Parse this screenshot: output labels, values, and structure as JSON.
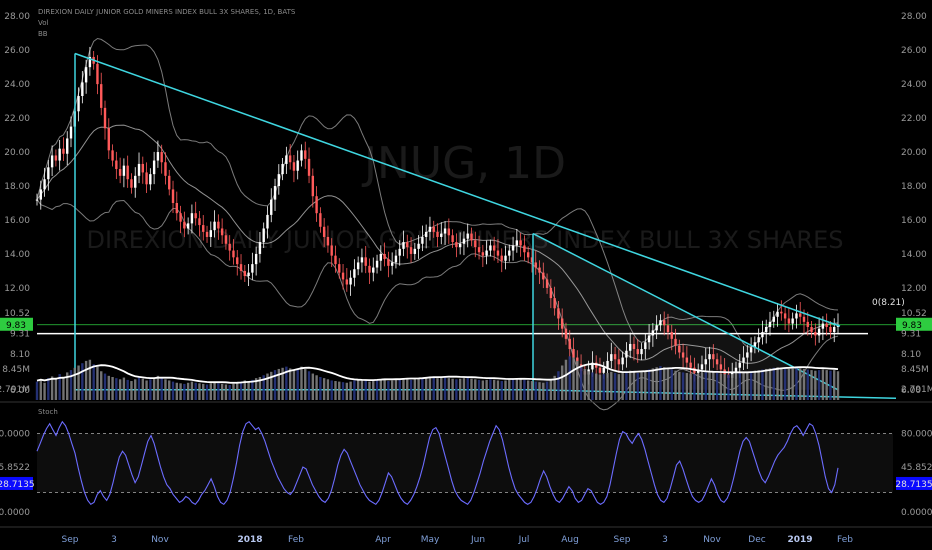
{
  "chart_data": {
    "type": "candlestick",
    "title": "DIREXION DAILY JUNIOR GOLD MINERS INDEX BULL 3X SHARES, 1D, BATS",
    "indicators": [
      "Vol",
      "BB"
    ],
    "watermark": {
      "ticker": "JNUG, 1D",
      "name": "DIREXION DAILY JUNIOR GOLD MINERS INDEX BULL 3X SHARES"
    },
    "price_axis": {
      "ticks": [
        "28.00",
        "26.00",
        "24.00",
        "22.00",
        "20.00",
        "18.00",
        "16.00",
        "14.00",
        "12.00",
        "10.52",
        "9.83",
        "9.31",
        "8.10",
        "6.00"
      ],
      "ylim": [
        5.4,
        28.6
      ],
      "last_price": "9.83",
      "last_price_color": "#2ecc40"
    },
    "horizontal_line_label": "0(8.21)",
    "volume_axis": {
      "ticks": [
        "8.45M",
        "2.791M"
      ]
    },
    "stoch": {
      "label": "Stoch",
      "ticks": [
        "80.0000",
        "45.8522",
        "28.7135",
        "0.0000"
      ],
      "highlight": "28.7135",
      "levels": [
        80,
        20
      ],
      "ylim": [
        -12,
        108
      ],
      "values": [
        62,
        70,
        78,
        85,
        90,
        84,
        78,
        86,
        92,
        88,
        80,
        70,
        60,
        45,
        32,
        20,
        12,
        8,
        10,
        18,
        22,
        16,
        12,
        18,
        30,
        44,
        56,
        62,
        58,
        48,
        38,
        30,
        36,
        48,
        60,
        72,
        78,
        70,
        58,
        46,
        36,
        28,
        24,
        18,
        14,
        10,
        12,
        16,
        14,
        10,
        8,
        12,
        18,
        22,
        28,
        34,
        26,
        16,
        10,
        8,
        12,
        20,
        34,
        50,
        68,
        82,
        90,
        92,
        88,
        84,
        86,
        80,
        72,
        62,
        52,
        44,
        36,
        30,
        24,
        20,
        18,
        22,
        30,
        38,
        46,
        44,
        36,
        28,
        22,
        16,
        12,
        10,
        14,
        22,
        34,
        48,
        58,
        64,
        60,
        52,
        44,
        36,
        28,
        22,
        16,
        12,
        10,
        8,
        12,
        20,
        30,
        40,
        36,
        28,
        20,
        14,
        10,
        8,
        12,
        18,
        26,
        36,
        48,
        62,
        76,
        84,
        86,
        80,
        68,
        56,
        44,
        32,
        22,
        16,
        12,
        10,
        8,
        12,
        20,
        30,
        40,
        52,
        62,
        72,
        80,
        88,
        84,
        74,
        60,
        46,
        34,
        24,
        18,
        14,
        10,
        8,
        10,
        16,
        24,
        34,
        42,
        36,
        26,
        18,
        12,
        10,
        14,
        20,
        26,
        22,
        14,
        10,
        12,
        18,
        24,
        22,
        16,
        10,
        8,
        10,
        16,
        28,
        44,
        60,
        74,
        82,
        80,
        74,
        70,
        76,
        80,
        74,
        64,
        52,
        40,
        28,
        18,
        12,
        10,
        14,
        24,
        36,
        48,
        52,
        44,
        34,
        24,
        16,
        12,
        10,
        12,
        18,
        26,
        34,
        28,
        18,
        12,
        10,
        14,
        22,
        34,
        48,
        62,
        72,
        76,
        72,
        62,
        52,
        42,
        34,
        30,
        36,
        44,
        52,
        58,
        62,
        66,
        72,
        80,
        86,
        88,
        84,
        78,
        84,
        90,
        88,
        80,
        68,
        52,
        36,
        24,
        20,
        28,
        45
      ]
    },
    "time_axis": {
      "ticks": [
        "Sep",
        "3",
        "Nov",
        "2018",
        "Feb",
        "Apr",
        "May",
        "Jun",
        "Jul",
        "Aug",
        "Sep",
        "3",
        "Nov",
        "Dec",
        "2019",
        "Feb"
      ]
    },
    "series": {
      "close": [
        17.2,
        17.8,
        18.4,
        19.1,
        19.8,
        19.5,
        20.2,
        19.9,
        20.8,
        21.5,
        22.4,
        23.3,
        24.1,
        25.0,
        25.6,
        25.2,
        24.0,
        22.6,
        21.4,
        20.1,
        19.5,
        19.0,
        18.6,
        19.2,
        18.4,
        17.9,
        18.6,
        19.3,
        18.8,
        18.1,
        18.7,
        19.5,
        20.0,
        19.4,
        18.6,
        17.8,
        17.0,
        16.4,
        15.9,
        15.5,
        15.8,
        16.4,
        16.1,
        15.7,
        15.3,
        15.0,
        15.4,
        15.9,
        15.5,
        15.1,
        14.6,
        14.2,
        13.8,
        13.4,
        13.0,
        12.7,
        12.9,
        13.4,
        14.0,
        14.7,
        15.5,
        16.3,
        17.2,
        18.0,
        18.7,
        19.3,
        19.8,
        19.4,
        18.9,
        19.5,
        20.1,
        19.6,
        18.6,
        17.4,
        16.4,
        15.6,
        15.0,
        14.5,
        13.9,
        13.4,
        12.9,
        12.5,
        12.2,
        12.6,
        13.1,
        13.5,
        13.8,
        13.3,
        12.9,
        13.2,
        13.6,
        14.0,
        13.7,
        13.3,
        13.5,
        13.9,
        14.3,
        14.7,
        14.4,
        14.0,
        14.3,
        14.6,
        15.0,
        15.3,
        15.6,
        15.3,
        15.0,
        15.2,
        15.5,
        15.1,
        14.7,
        14.4,
        14.6,
        14.9,
        15.2,
        14.8,
        14.4,
        14.1,
        13.9,
        14.2,
        14.5,
        14.2,
        13.9,
        13.6,
        13.9,
        14.2,
        14.5,
        14.8,
        14.5,
        14.1,
        13.8,
        13.5,
        13.2,
        12.9,
        12.5,
        12.0,
        11.4,
        10.8,
        10.2,
        9.6,
        9.0,
        8.4,
        7.9,
        7.5,
        7.1,
        6.9,
        7.2,
        7.6,
        7.3,
        7.0,
        7.3,
        7.7,
        8.1,
        7.8,
        7.5,
        7.9,
        8.3,
        8.7,
        8.4,
        8.1,
        8.4,
        8.8,
        9.2,
        9.5,
        9.8,
        10.1,
        9.8,
        9.4,
        9.0,
        8.6,
        8.2,
        7.9,
        7.6,
        7.3,
        7.0,
        7.2,
        7.5,
        7.8,
        8.1,
        7.8,
        7.5,
        7.2,
        6.9,
        6.7,
        7.0,
        7.3,
        7.6,
        7.9,
        8.2,
        8.5,
        8.8,
        9.1,
        9.4,
        9.7,
        10.0,
        10.3,
        10.6,
        10.5,
        10.2,
        9.9,
        10.2,
        10.5,
        10.3,
        10.0,
        9.7,
        9.4,
        9.2,
        9.6,
        9.9,
        9.7,
        9.4,
        9.7,
        9.83
      ],
      "volume": [
        3.2,
        3.5,
        3.0,
        3.8,
        4.1,
        3.6,
        4.5,
        4.0,
        4.8,
        5.2,
        5.6,
        6.0,
        6.4,
        6.8,
        7.0,
        6.2,
        5.8,
        5.0,
        4.6,
        4.2,
        4.0,
        3.8,
        3.6,
        3.9,
        3.5,
        3.3,
        3.6,
        3.9,
        3.7,
        3.4,
        3.6,
        3.9,
        4.2,
        3.9,
        3.6,
        3.4,
        3.2,
        3.0,
        2.9,
        2.8,
        3.0,
        3.2,
        3.0,
        2.9,
        2.8,
        2.7,
        2.9,
        3.1,
        2.9,
        2.8,
        2.7,
        2.6,
        2.8,
        3.0,
        3.2,
        3.4,
        3.3,
        3.5,
        3.8,
        4.0,
        4.3,
        4.6,
        4.9,
        5.2,
        5.4,
        5.6,
        5.8,
        5.5,
        5.2,
        5.5,
        5.8,
        5.4,
        5.0,
        4.6,
        4.3,
        4.0,
        3.8,
        3.6,
        3.4,
        3.3,
        3.2,
        3.1,
        3.0,
        3.2,
        3.4,
        3.5,
        3.6,
        3.4,
        3.2,
        3.3,
        3.5,
        3.6,
        3.5,
        3.3,
        3.4,
        3.6,
        3.7,
        3.8,
        3.7,
        3.5,
        3.6,
        3.7,
        3.9,
        4.0,
        4.1,
        3.9,
        3.8,
        3.9,
        4.0,
        3.8,
        3.7,
        3.6,
        3.7,
        3.8,
        3.9,
        3.7,
        3.6,
        3.5,
        3.4,
        3.5,
        3.6,
        3.5,
        3.4,
        3.3,
        3.4,
        3.5,
        3.6,
        3.7,
        3.6,
        3.5,
        3.4,
        3.3,
        3.2,
        3.1,
        3.0,
        3.2,
        3.6,
        4.2,
        5.0,
        6.0,
        7.0,
        7.6,
        7.4,
        6.8,
        6.0,
        5.4,
        5.0,
        4.8,
        4.6,
        4.4,
        4.5,
        4.7,
        4.9,
        4.7,
        4.5,
        4.7,
        4.9,
        5.1,
        4.9,
        4.7,
        4.9,
        5.1,
        5.3,
        5.5,
        5.7,
        5.9,
        5.7,
        5.5,
        5.3,
        5.1,
        4.9,
        4.8,
        4.7,
        4.6,
        4.5,
        4.6,
        4.7,
        4.8,
        4.9,
        4.8,
        4.7,
        4.6,
        4.5,
        4.4,
        4.5,
        4.6,
        4.7,
        4.8,
        4.9,
        5.0,
        5.1,
        5.2,
        5.3,
        5.4,
        5.5,
        5.6,
        5.7,
        5.6,
        5.5,
        5.4,
        5.5,
        5.6,
        5.5,
        5.4,
        5.3,
        5.2,
        5.1,
        5.2,
        5.3,
        5.2,
        5.1,
        5.2,
        5.0
      ]
    },
    "colors": {
      "up": "#ffffff",
      "down": "#ff5a5a",
      "trendline": "#3fd6e0",
      "bb": "#cfcfcf",
      "volume": "#808080",
      "volume_dark": "#283580",
      "stoch": "#6c6cff",
      "highlight_bg": "#0a0aff"
    }
  }
}
